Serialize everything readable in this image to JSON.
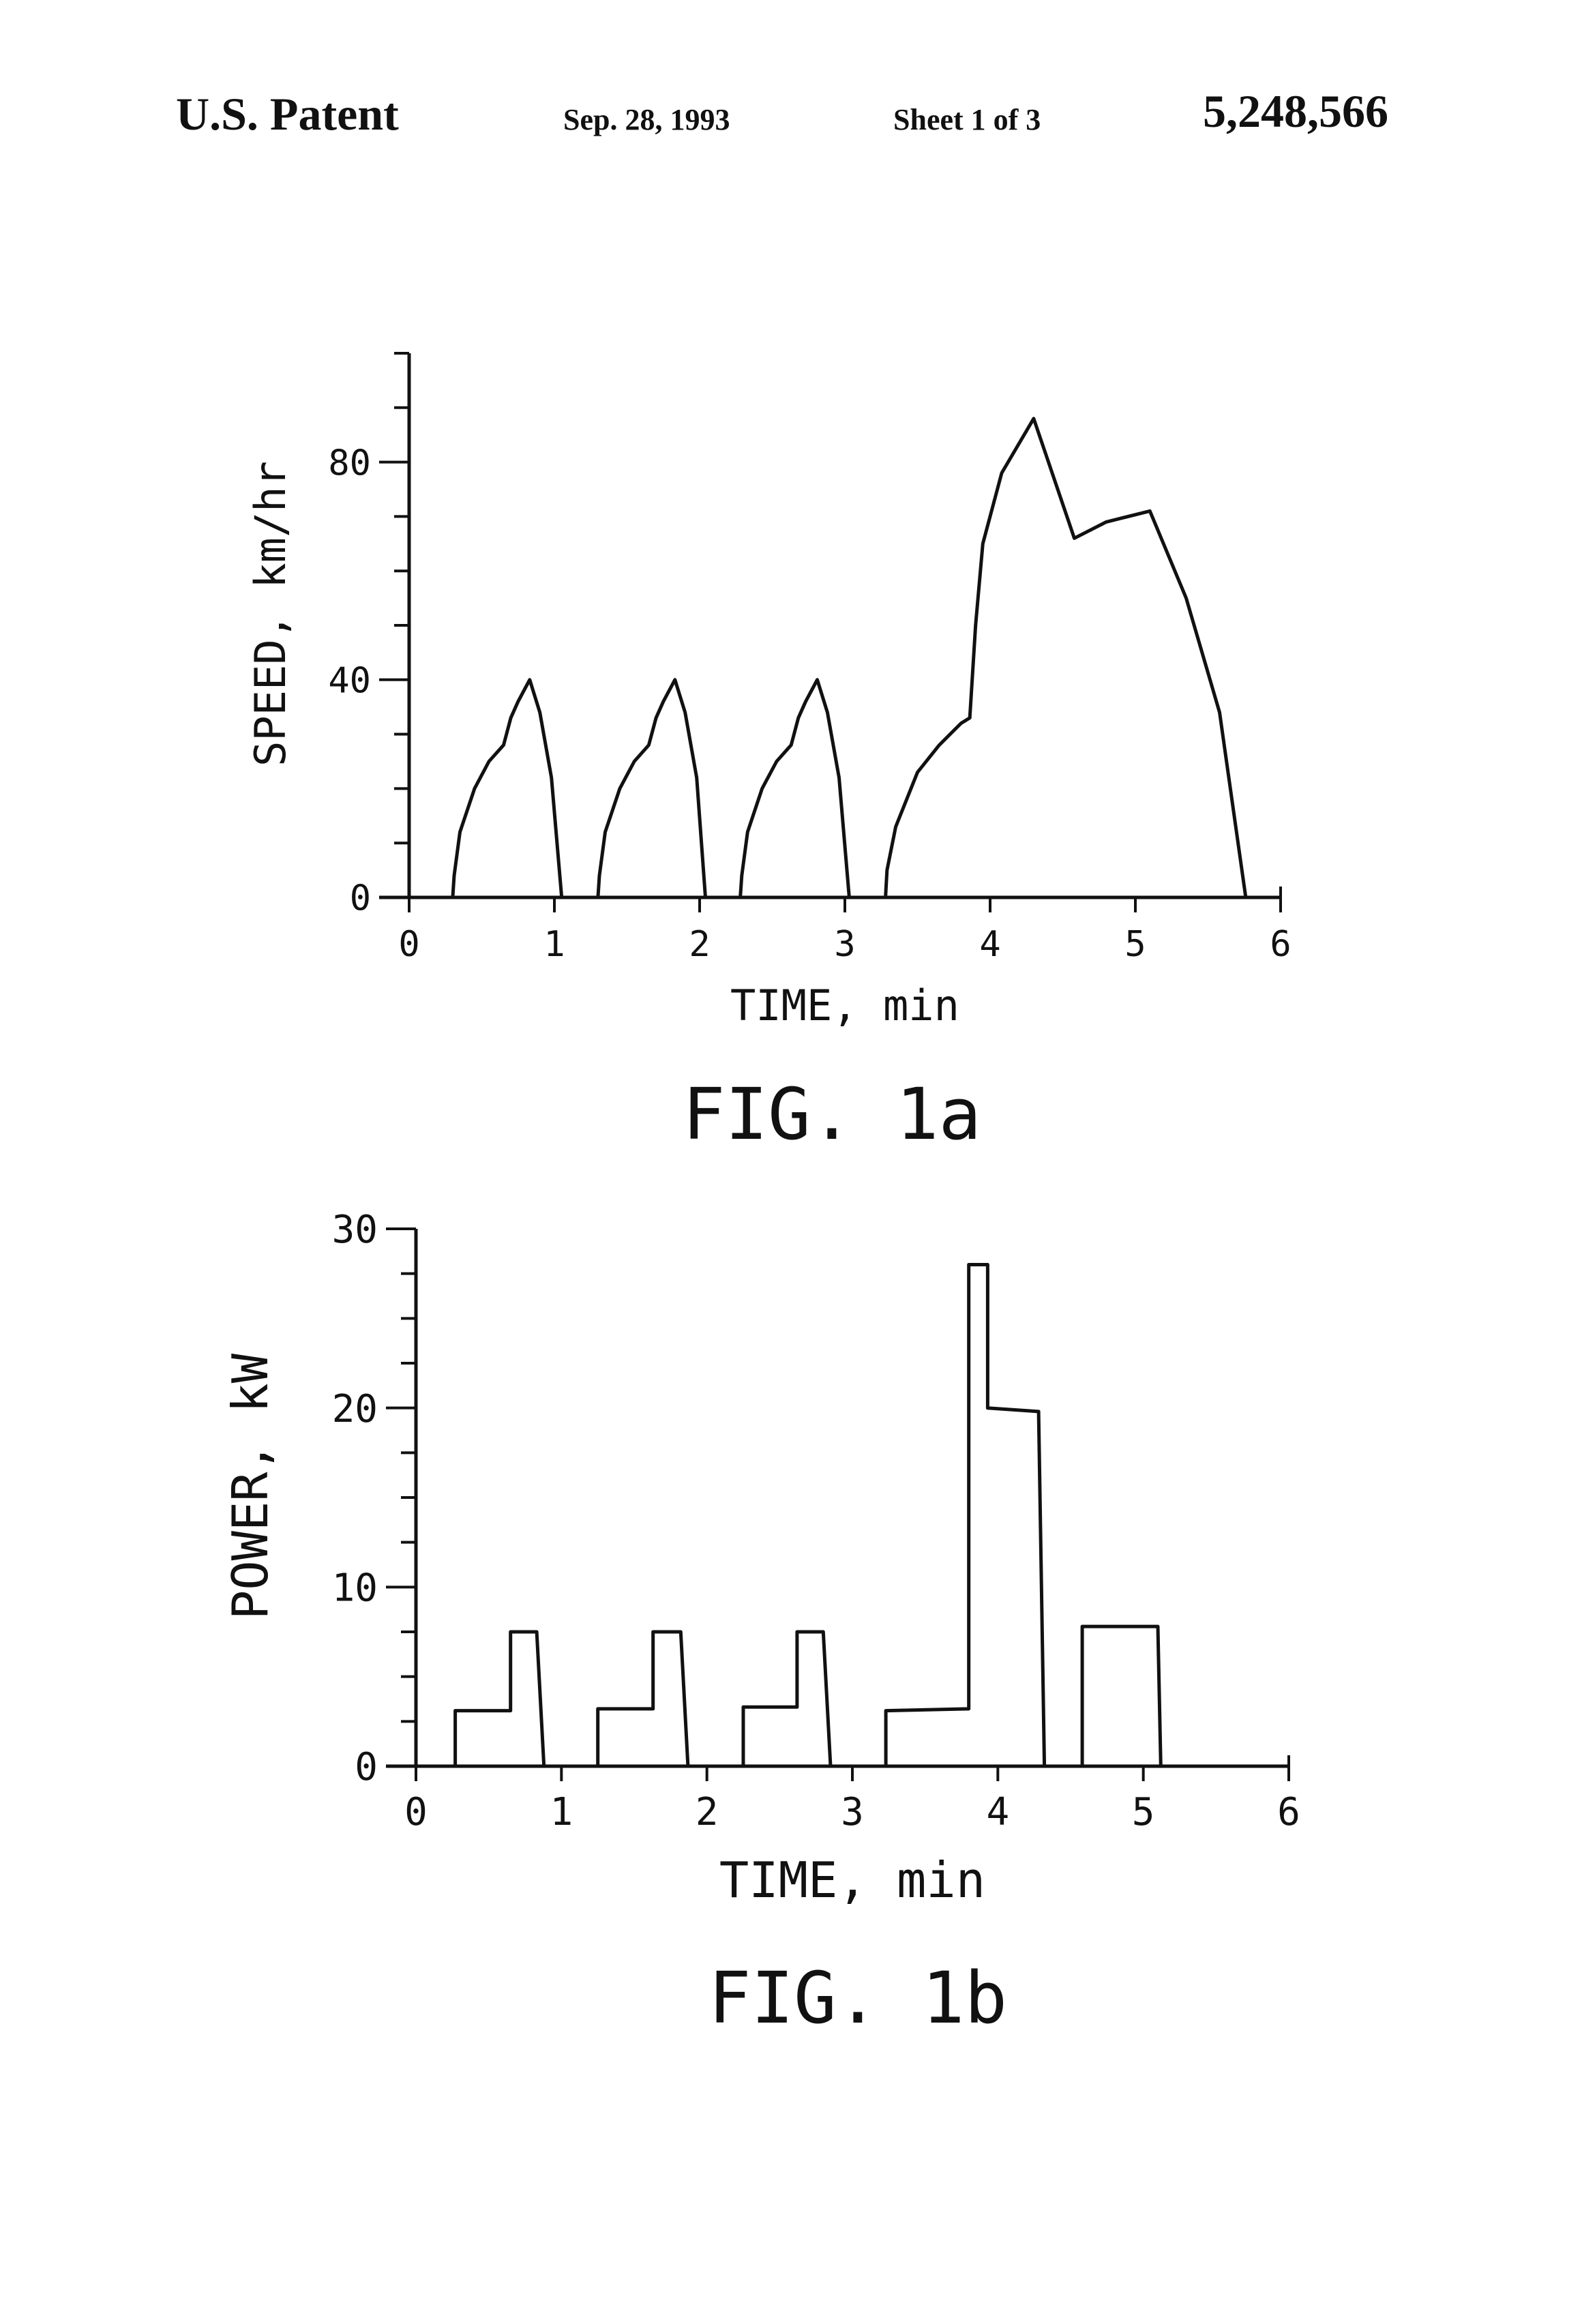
{
  "header": {
    "left": "U.S. Patent",
    "date": "Sep. 28, 1993",
    "sheet": "Sheet 1 of 3",
    "patent_number": "5,248,566"
  },
  "chart_data": [
    {
      "type": "line",
      "caption": "FIG. 1a",
      "xlabel": "TIME, min",
      "ylabel": "SPEED, km/hr",
      "xlim": [
        0,
        6
      ],
      "ylim": [
        0,
        100
      ],
      "xticks": [
        "0",
        "1",
        "2",
        "3",
        "4",
        "5",
        "6"
      ],
      "yticks": [
        "0",
        "40",
        "80"
      ],
      "grid": false,
      "series": [
        {
          "x": [
            0,
            0.3,
            0.31,
            0.35,
            0.45,
            0.55,
            0.65,
            0.7,
            0.75,
            0.83,
            0.9,
            0.98,
            1.05,
            1.3,
            1.31,
            1.35,
            1.45,
            1.55,
            1.65,
            1.7,
            1.75,
            1.83,
            1.9,
            1.98,
            2.04,
            2.28,
            2.29,
            2.33,
            2.43,
            2.53,
            2.63,
            2.68,
            2.73,
            2.81,
            2.88,
            2.96,
            3.03,
            3.28,
            3.29,
            3.35,
            3.5,
            3.65,
            3.8,
            3.86,
            3.9,
            3.95,
            4.08,
            4.3,
            4.58,
            4.8,
            5.1,
            5.35,
            5.58,
            5.76,
            6.0
          ],
          "y": [
            0,
            0,
            4,
            12,
            20,
            25,
            28,
            33,
            36,
            40,
            34,
            22,
            0,
            0,
            4,
            12,
            20,
            25,
            28,
            33,
            36,
            40,
            34,
            22,
            0,
            0,
            4,
            12,
            20,
            25,
            28,
            33,
            36,
            40,
            34,
            22,
            0,
            0,
            5,
            13,
            23,
            28,
            32,
            33,
            50,
            65,
            78,
            88,
            66,
            69,
            71,
            55,
            34,
            0,
            0
          ]
        }
      ]
    },
    {
      "type": "line",
      "caption": "FIG. 1b",
      "xlabel": "TIME, min",
      "ylabel": "POWER, kW",
      "xlim": [
        0,
        6
      ],
      "ylim": [
        0,
        30
      ],
      "xticks": [
        "0",
        "1",
        "2",
        "3",
        "4",
        "5",
        "6"
      ],
      "yticks": [
        "0",
        "10",
        "20",
        "30"
      ],
      "grid": false,
      "series": [
        {
          "x": [
            0,
            0.27,
            0.27,
            0.65,
            0.65,
            0.83,
            0.88,
            1.25,
            1.25,
            1.63,
            1.63,
            1.82,
            1.87,
            2.25,
            2.25,
            2.62,
            2.62,
            2.8,
            2.85,
            3.23,
            3.23,
            3.8,
            3.8,
            3.93,
            3.93,
            4.28,
            4.32,
            4.58,
            4.58,
            5.1,
            5.12,
            6.0
          ],
          "y": [
            0,
            0,
            3.1,
            3.1,
            7.5,
            7.5,
            0,
            0,
            3.2,
            3.2,
            7.5,
            7.5,
            0,
            0,
            3.3,
            3.3,
            7.5,
            7.5,
            0,
            0,
            3.1,
            3.2,
            28,
            28,
            20,
            19.8,
            0,
            0,
            7.8,
            7.8,
            0,
            0
          ]
        }
      ]
    }
  ]
}
